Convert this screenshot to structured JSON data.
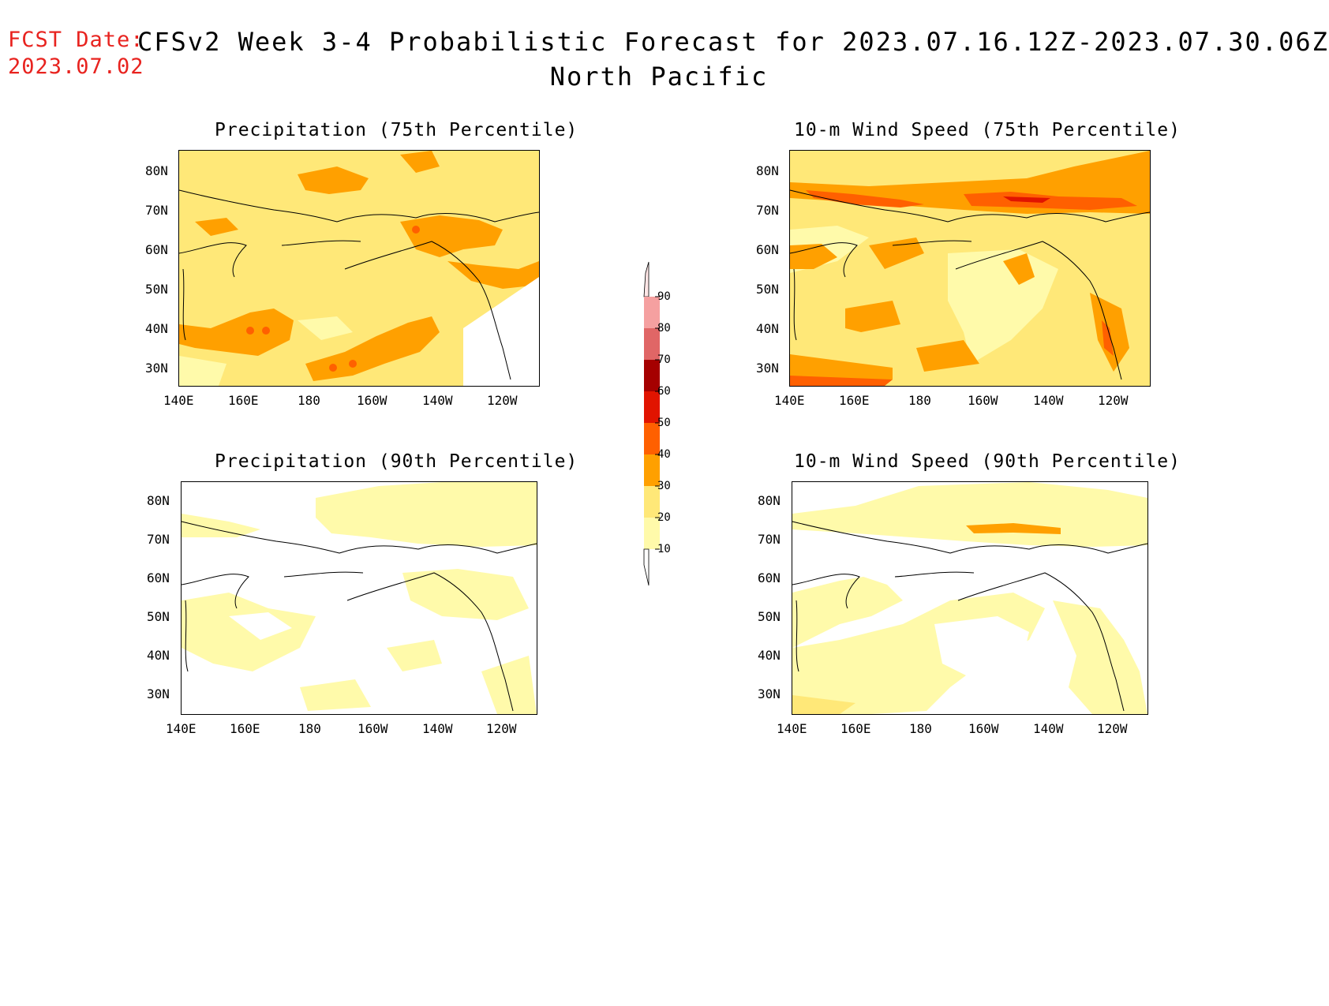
{
  "header": {
    "fcst_label": "FCST Date:",
    "fcst_date": "2023.07.02",
    "title": "CFSv2 Week 3-4 Probabilistic Forecast for 2023.07.16.12Z-2023.07.30.06Z",
    "subtitle": "North Pacific"
  },
  "axes": {
    "lat_labels": [
      "80N",
      "70N",
      "60N",
      "50N",
      "40N",
      "30N"
    ],
    "lon_labels": [
      "140E",
      "160E",
      "180",
      "160W",
      "140W",
      "120W"
    ]
  },
  "panels": [
    {
      "title": "Precipitation (75th Percentile)"
    },
    {
      "title": "10-m Wind Speed (75th Percentile)"
    },
    {
      "title": "Precipitation (90th Percentile)"
    },
    {
      "title": "10-m Wind Speed (90th Percentile)"
    }
  ],
  "colorbar": {
    "levels": [
      "10",
      "20",
      "30",
      "40",
      "50",
      "60",
      "70",
      "80",
      "90"
    ],
    "colors": {
      "c10": "#fffaaa",
      "c20": "#ffe878",
      "c30": "#ffa000",
      "c40": "#ff6000",
      "c50": "#e11400",
      "c60": "#a50000",
      "c70": "#e06666",
      "c80": "#f5a0a0",
      "c90": "#ffe6e6"
    }
  }
}
